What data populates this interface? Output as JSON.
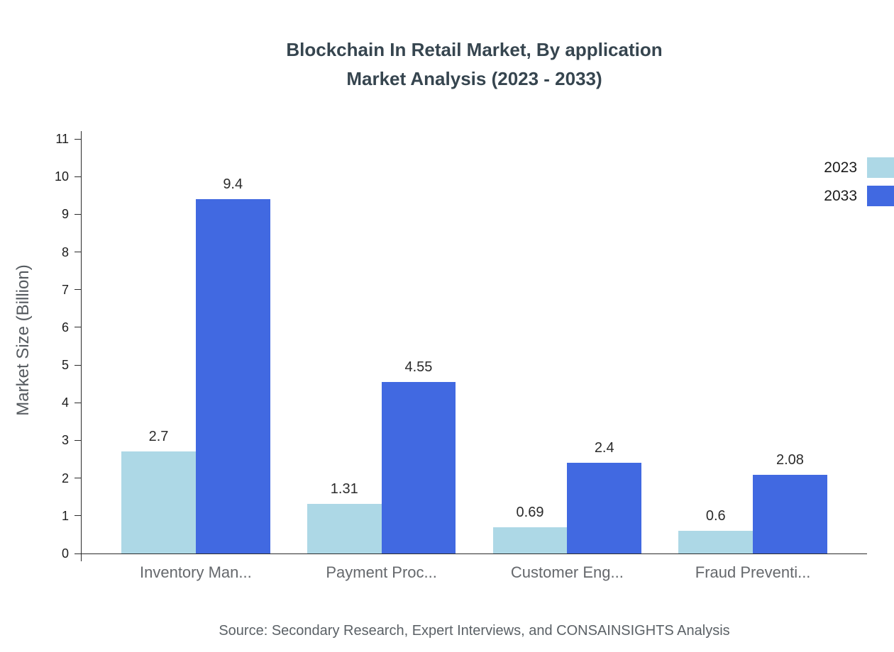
{
  "title": {
    "line1": "Blockchain In Retail Market, By application",
    "line2": "Market Analysis (2023 - 2033)"
  },
  "source": "Source: Secondary Research, Expert Interviews, and CONSAINSIGHTS Analysis",
  "chart_data": {
    "type": "bar",
    "title": "Blockchain In Retail Market, By application Market Analysis (2023 - 2033)",
    "xlabel": "",
    "ylabel": "Market Size (Billion)",
    "categories": [
      "Inventory Man...",
      "Payment Proc...",
      "Customer Eng...",
      "Fraud Preventi..."
    ],
    "series": [
      {
        "name": "2023",
        "color": "#ADD8E6",
        "values": [
          2.7,
          1.31,
          0.69,
          0.6
        ]
      },
      {
        "name": "2033",
        "color": "#4169E1",
        "values": [
          9.4,
          4.55,
          2.4,
          2.08
        ]
      }
    ],
    "ylim": [
      0,
      11
    ],
    "ytick_step": 1,
    "grid": false,
    "legend_position": "top-right",
    "value_labels": true,
    "axis_color": "#2b2b2b"
  }
}
